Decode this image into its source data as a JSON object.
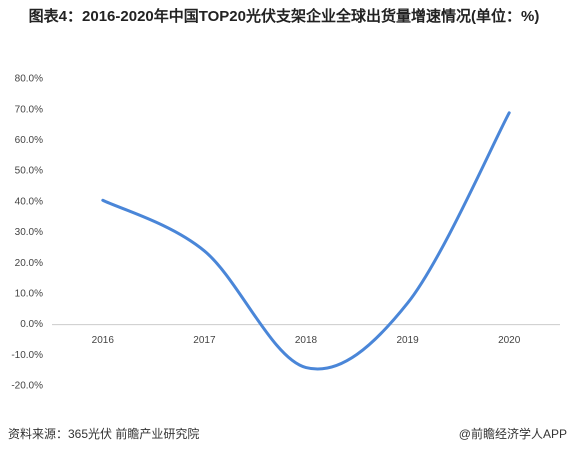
{
  "chart_data": {
    "type": "line",
    "title": "图表4：2016-2020年中国TOP20光伏支架企业全球出货量增速情况(单位：%)",
    "categories": [
      "2016",
      "2017",
      "2018",
      "2019",
      "2020"
    ],
    "series": [
      {
        "name": "增速",
        "color": "#4a86d8",
        "values": [
          40.5,
          24,
          -14,
          7,
          69
        ]
      }
    ],
    "ylim": [
      -20,
      80
    ],
    "yticks": [
      {
        "value": -20,
        "label": "-20.0%"
      },
      {
        "value": -10,
        "label": "-10.0%"
      },
      {
        "value": 0,
        "label": "0.0%"
      },
      {
        "value": 10,
        "label": "10.0%"
      },
      {
        "value": 20,
        "label": "20.0%"
      },
      {
        "value": 30,
        "label": "30.0%"
      },
      {
        "value": 40,
        "label": "40.0%"
      },
      {
        "value": 50,
        "label": "50.0%"
      },
      {
        "value": 60,
        "label": "60.0%"
      },
      {
        "value": 70,
        "label": "70.0%"
      },
      {
        "value": 80,
        "label": "80.0%"
      }
    ],
    "source": "资料来源：365光伏 前瞻产业研究院",
    "brand": "@前瞻经济学人APP"
  }
}
